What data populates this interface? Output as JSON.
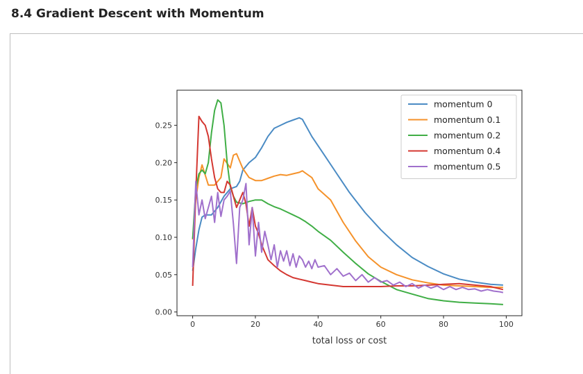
{
  "heading": "8.4 Gradient Descent with Momentum",
  "chart_data": {
    "type": "line",
    "title": "",
    "xlabel": "total loss or cost",
    "ylabel": "",
    "xlim": [
      -5,
      105
    ],
    "ylim": [
      -0.005,
      0.297
    ],
    "xticks": [
      0,
      20,
      40,
      60,
      80,
      100
    ],
    "yticks": [
      0.0,
      0.05,
      0.1,
      0.15,
      0.2,
      0.25
    ],
    "xtick_labels": [
      "0",
      "20",
      "40",
      "60",
      "80",
      "100"
    ],
    "ytick_labels": [
      "0.00",
      "0.05",
      "0.10",
      "0.15",
      "0.20",
      "0.25"
    ],
    "legend_position": "top-right",
    "grid": false,
    "series": [
      {
        "name": "momentum 0",
        "color": "#4a8bc4",
        "x": [
          0,
          1,
          2,
          3,
          4,
          6,
          8,
          10,
          12,
          14,
          15,
          16,
          18,
          20,
          22,
          24,
          26,
          28,
          30,
          32,
          34,
          35,
          38,
          42,
          46,
          50,
          55,
          60,
          65,
          70,
          75,
          80,
          85,
          90,
          95,
          99
        ],
        "y": [
          0.055,
          0.085,
          0.11,
          0.127,
          0.13,
          0.13,
          0.14,
          0.155,
          0.165,
          0.168,
          0.175,
          0.19,
          0.2,
          0.207,
          0.22,
          0.235,
          0.246,
          0.25,
          0.254,
          0.257,
          0.26,
          0.258,
          0.235,
          0.21,
          0.185,
          0.16,
          0.133,
          0.11,
          0.09,
          0.073,
          0.061,
          0.051,
          0.044,
          0.04,
          0.037,
          0.036
        ]
      },
      {
        "name": "momentum 0.1",
        "color": "#f5922a",
        "x": [
          0,
          1,
          2,
          3,
          5,
          7,
          9,
          10,
          12,
          13,
          14,
          16,
          18,
          20,
          22,
          24,
          26,
          28,
          30,
          32,
          34,
          35,
          36,
          38,
          40,
          44,
          48,
          52,
          56,
          60,
          65,
          70,
          75,
          80,
          85,
          90,
          95,
          99
        ],
        "y": [
          0.097,
          0.15,
          0.18,
          0.197,
          0.17,
          0.17,
          0.18,
          0.205,
          0.193,
          0.21,
          0.212,
          0.192,
          0.18,
          0.176,
          0.176,
          0.179,
          0.182,
          0.184,
          0.183,
          0.185,
          0.187,
          0.189,
          0.186,
          0.18,
          0.165,
          0.15,
          0.12,
          0.095,
          0.074,
          0.06,
          0.05,
          0.043,
          0.039,
          0.036,
          0.035,
          0.034,
          0.033,
          0.033
        ]
      },
      {
        "name": "momentum 0.2",
        "color": "#3fae45",
        "x": [
          0,
          1,
          2,
          3,
          4,
          5,
          6,
          7,
          8,
          9,
          10,
          11,
          12,
          13,
          14,
          16,
          18,
          20,
          22,
          24,
          26,
          28,
          30,
          32,
          34,
          36,
          38,
          40,
          44,
          48,
          52,
          56,
          60,
          65,
          70,
          75,
          80,
          85,
          90,
          95,
          99
        ],
        "y": [
          0.098,
          0.165,
          0.185,
          0.19,
          0.185,
          0.2,
          0.24,
          0.27,
          0.284,
          0.28,
          0.25,
          0.2,
          0.168,
          0.155,
          0.147,
          0.145,
          0.148,
          0.15,
          0.15,
          0.145,
          0.141,
          0.138,
          0.134,
          0.13,
          0.126,
          0.121,
          0.115,
          0.108,
          0.096,
          0.08,
          0.065,
          0.051,
          0.041,
          0.03,
          0.024,
          0.018,
          0.015,
          0.013,
          0.012,
          0.011,
          0.01
        ]
      },
      {
        "name": "momentum 0.4",
        "color": "#d43731",
        "x": [
          0,
          1,
          2,
          3,
          4,
          5,
          6,
          7,
          8,
          9,
          10,
          11,
          12,
          13,
          14,
          15,
          16,
          17,
          18,
          19,
          20,
          21,
          22,
          23,
          24,
          26,
          28,
          30,
          32,
          34,
          36,
          38,
          40,
          44,
          48,
          52,
          56,
          60,
          65,
          70,
          75,
          80,
          85,
          90,
          95,
          99
        ],
        "y": [
          0.035,
          0.16,
          0.262,
          0.255,
          0.25,
          0.235,
          0.205,
          0.18,
          0.165,
          0.16,
          0.16,
          0.175,
          0.17,
          0.155,
          0.14,
          0.15,
          0.16,
          0.145,
          0.115,
          0.14,
          0.115,
          0.105,
          0.09,
          0.08,
          0.07,
          0.062,
          0.055,
          0.05,
          0.046,
          0.044,
          0.042,
          0.04,
          0.038,
          0.036,
          0.034,
          0.034,
          0.034,
          0.034,
          0.035,
          0.035,
          0.036,
          0.037,
          0.038,
          0.036,
          0.034,
          0.03
        ]
      },
      {
        "name": "momentum 0.5",
        "color": "#a070cc",
        "x": [
          0,
          1,
          2,
          3,
          4,
          5,
          6,
          7,
          8,
          9,
          10,
          11,
          12,
          13,
          14,
          15,
          16,
          17,
          18,
          19,
          20,
          21,
          22,
          23,
          24,
          25,
          26,
          27,
          28,
          29,
          30,
          31,
          32,
          33,
          34,
          35,
          36,
          37,
          38,
          39,
          40,
          42,
          44,
          46,
          48,
          50,
          52,
          54,
          56,
          58,
          60,
          62,
          64,
          66,
          68,
          70,
          72,
          74,
          76,
          78,
          80,
          82,
          84,
          86,
          88,
          90,
          92,
          94,
          96,
          98,
          99
        ],
        "y": [
          0.06,
          0.175,
          0.13,
          0.15,
          0.125,
          0.14,
          0.155,
          0.12,
          0.16,
          0.128,
          0.15,
          0.155,
          0.162,
          0.118,
          0.065,
          0.14,
          0.15,
          0.172,
          0.09,
          0.14,
          0.075,
          0.12,
          0.08,
          0.108,
          0.09,
          0.07,
          0.09,
          0.06,
          0.082,
          0.068,
          0.082,
          0.062,
          0.078,
          0.06,
          0.075,
          0.07,
          0.06,
          0.068,
          0.058,
          0.07,
          0.06,
          0.062,
          0.05,
          0.058,
          0.048,
          0.052,
          0.042,
          0.05,
          0.04,
          0.046,
          0.04,
          0.042,
          0.036,
          0.04,
          0.034,
          0.038,
          0.032,
          0.036,
          0.032,
          0.035,
          0.03,
          0.034,
          0.03,
          0.033,
          0.03,
          0.031,
          0.028,
          0.03,
          0.028,
          0.027,
          0.026
        ]
      }
    ]
  }
}
